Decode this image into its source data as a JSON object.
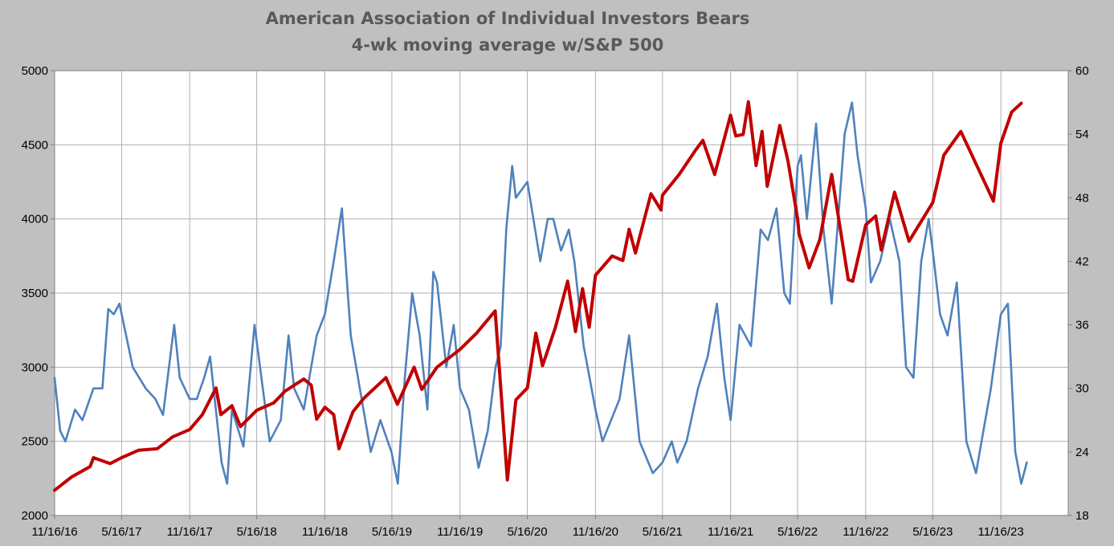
{
  "chart_data": {
    "type": "line",
    "title": "American Association of Individual Investors Bears",
    "subtitle": "4-wk moving average w/S&P 500",
    "xlabel": "",
    "ylabel": "",
    "x_tick_labels": [
      "11/16/16",
      "5/16/17",
      "11/16/17",
      "5/16/18",
      "11/16/18",
      "5/16/19",
      "11/16/19",
      "5/16/20",
      "11/16/20",
      "5/16/21",
      "11/16/21",
      "5/16/22",
      "11/16/22",
      "5/16/23",
      "11/16/23"
    ],
    "x_ticks": [
      "2016-11-16",
      "2017-05-16",
      "2017-11-16",
      "2018-05-16",
      "2018-11-16",
      "2019-05-16",
      "2019-11-16",
      "2020-05-16",
      "2020-11-16",
      "2021-05-16",
      "2021-11-16",
      "2022-05-16",
      "2022-11-16",
      "2023-05-16",
      "2023-11-16"
    ],
    "xlim": [
      "2016-11-16",
      "2024-05-16"
    ],
    "y_left": {
      "range": [
        2000,
        5000
      ],
      "ticks": [
        "2000",
        "2500",
        "3000",
        "3500",
        "4000",
        "4500",
        "5000"
      ]
    },
    "y_right": {
      "range": [
        18,
        60
      ],
      "ticks": [
        "18",
        "24",
        "30",
        "36",
        "42",
        "48",
        "54",
        "60"
      ]
    },
    "grid": true,
    "legend": "none",
    "colors": {
      "background": "#c0c0c0",
      "plot_bg": "#ffffff",
      "grid": "#b0b0b0",
      "sp500": "#c00000",
      "bears": "#4f81bd"
    },
    "series": [
      {
        "axis": "left",
        "color": "#c00000",
        "points": [
          [
            "2016-11-16",
            2170
          ],
          [
            "2017-01-01",
            2260
          ],
          [
            "2017-02-20",
            2330
          ],
          [
            "2017-03-01",
            2390
          ],
          [
            "2017-04-15",
            2350
          ],
          [
            "2017-05-16",
            2390
          ],
          [
            "2017-07-01",
            2440
          ],
          [
            "2017-08-20",
            2450
          ],
          [
            "2017-10-01",
            2530
          ],
          [
            "2017-11-16",
            2580
          ],
          [
            "2017-12-20",
            2680
          ],
          [
            "2018-01-26",
            2860
          ],
          [
            "2018-02-08",
            2680
          ],
          [
            "2018-03-10",
            2740
          ],
          [
            "2018-04-02",
            2600
          ],
          [
            "2018-05-16",
            2710
          ],
          [
            "2018-07-01",
            2760
          ],
          [
            "2018-08-01",
            2840
          ],
          [
            "2018-09-20",
            2920
          ],
          [
            "2018-10-10",
            2880
          ],
          [
            "2018-10-25",
            2650
          ],
          [
            "2018-11-16",
            2730
          ],
          [
            "2018-12-10",
            2680
          ],
          [
            "2018-12-24",
            2450
          ],
          [
            "2019-01-31",
            2700
          ],
          [
            "2019-03-01",
            2790
          ],
          [
            "2019-04-30",
            2930
          ],
          [
            "2019-05-31",
            2750
          ],
          [
            "2019-07-15",
            3000
          ],
          [
            "2019-08-05",
            2850
          ],
          [
            "2019-09-15",
            3000
          ],
          [
            "2019-11-16",
            3120
          ],
          [
            "2019-12-31",
            3230
          ],
          [
            "2020-02-19",
            3380
          ],
          [
            "2020-03-01",
            3000
          ],
          [
            "2020-03-23",
            2240
          ],
          [
            "2020-04-15",
            2780
          ],
          [
            "2020-05-16",
            2860
          ],
          [
            "2020-06-08",
            3230
          ],
          [
            "2020-06-26",
            3010
          ],
          [
            "2020-07-31",
            3270
          ],
          [
            "2020-09-02",
            3580
          ],
          [
            "2020-09-23",
            3240
          ],
          [
            "2020-10-12",
            3530
          ],
          [
            "2020-10-30",
            3270
          ],
          [
            "2020-11-16",
            3620
          ],
          [
            "2020-12-31",
            3750
          ],
          [
            "2021-01-29",
            3720
          ],
          [
            "2021-02-15",
            3930
          ],
          [
            "2021-03-04",
            3770
          ],
          [
            "2021-04-15",
            4170
          ],
          [
            "2021-05-12",
            4060
          ],
          [
            "2021-05-16",
            4160
          ],
          [
            "2021-06-30",
            4300
          ],
          [
            "2021-08-15",
            4470
          ],
          [
            "2021-09-02",
            4530
          ],
          [
            "2021-10-04",
            4300
          ],
          [
            "2021-11-16",
            4700
          ],
          [
            "2021-11-30",
            4560
          ],
          [
            "2021-12-20",
            4570
          ],
          [
            "2022-01-03",
            4790
          ],
          [
            "2022-01-24",
            4360
          ],
          [
            "2022-02-09",
            4590
          ],
          [
            "2022-02-23",
            4220
          ],
          [
            "2022-03-29",
            4630
          ],
          [
            "2022-04-20",
            4390
          ],
          [
            "2022-05-16",
            4000
          ],
          [
            "2022-05-20",
            3900
          ],
          [
            "2022-06-16",
            3670
          ],
          [
            "2022-07-15",
            3860
          ],
          [
            "2022-08-16",
            4300
          ],
          [
            "2022-09-30",
            3590
          ],
          [
            "2022-10-12",
            3580
          ],
          [
            "2022-11-16",
            3960
          ],
          [
            "2022-12-13",
            4020
          ],
          [
            "2022-12-28",
            3790
          ],
          [
            "2023-02-02",
            4180
          ],
          [
            "2023-03-13",
            3850
          ],
          [
            "2023-05-16",
            4110
          ],
          [
            "2023-06-15",
            4430
          ],
          [
            "2023-07-31",
            4590
          ],
          [
            "2023-10-27",
            4120
          ],
          [
            "2023-11-16",
            4510
          ],
          [
            "2023-12-15",
            4720
          ],
          [
            "2024-01-10",
            4780
          ]
        ]
      },
      {
        "axis": "right",
        "color": "#4f81bd",
        "points": [
          [
            "2016-11-16",
            31
          ],
          [
            "2016-12-01",
            26
          ],
          [
            "2016-12-15",
            25
          ],
          [
            "2017-01-10",
            28
          ],
          [
            "2017-01-30",
            27
          ],
          [
            "2017-03-01",
            30
          ],
          [
            "2017-03-25",
            30
          ],
          [
            "2017-04-10",
            37.5
          ],
          [
            "2017-04-25",
            37
          ],
          [
            "2017-05-10",
            38
          ],
          [
            "2017-06-15",
            32
          ],
          [
            "2017-07-20",
            30
          ],
          [
            "2017-08-15",
            29
          ],
          [
            "2017-09-05",
            27.5
          ],
          [
            "2017-10-05",
            36
          ],
          [
            "2017-10-20",
            31
          ],
          [
            "2017-11-16",
            29
          ],
          [
            "2017-12-05",
            29
          ],
          [
            "2017-12-25",
            31
          ],
          [
            "2018-01-10",
            33
          ],
          [
            "2018-02-10",
            23
          ],
          [
            "2018-02-25",
            21
          ],
          [
            "2018-03-10",
            28
          ],
          [
            "2018-04-10",
            24.5
          ],
          [
            "2018-05-10",
            36
          ],
          [
            "2018-05-25",
            32
          ],
          [
            "2018-06-20",
            25
          ],
          [
            "2018-07-20",
            27
          ],
          [
            "2018-08-10",
            35
          ],
          [
            "2018-08-25",
            30
          ],
          [
            "2018-09-20",
            28
          ],
          [
            "2018-10-25",
            35
          ],
          [
            "2018-11-16",
            37
          ],
          [
            "2018-12-10",
            42
          ],
          [
            "2019-01-01",
            47
          ],
          [
            "2019-01-25",
            35
          ],
          [
            "2019-03-20",
            24
          ],
          [
            "2019-04-15",
            27
          ],
          [
            "2019-05-15",
            24
          ],
          [
            "2019-06-01",
            21
          ],
          [
            "2019-06-20",
            31
          ],
          [
            "2019-07-10",
            39
          ],
          [
            "2019-07-30",
            35
          ],
          [
            "2019-08-20",
            28
          ],
          [
            "2019-09-05",
            41
          ],
          [
            "2019-09-15",
            40
          ],
          [
            "2019-10-10",
            32
          ],
          [
            "2019-10-30",
            36
          ],
          [
            "2019-11-16",
            30
          ],
          [
            "2019-12-10",
            28
          ],
          [
            "2020-01-05",
            22.5
          ],
          [
            "2020-01-30",
            26
          ],
          [
            "2020-02-20",
            32
          ],
          [
            "2020-03-05",
            34
          ],
          [
            "2020-03-20",
            45
          ],
          [
            "2020-04-05",
            51
          ],
          [
            "2020-04-15",
            48
          ],
          [
            "2020-05-16",
            49.5
          ],
          [
            "2020-06-20",
            42
          ],
          [
            "2020-07-10",
            46
          ],
          [
            "2020-07-25",
            46
          ],
          [
            "2020-08-15",
            43
          ],
          [
            "2020-09-05",
            45
          ],
          [
            "2020-09-20",
            42
          ],
          [
            "2020-10-15",
            34
          ],
          [
            "2020-11-16",
            28
          ],
          [
            "2020-12-05",
            25
          ],
          [
            "2021-01-20",
            29
          ],
          [
            "2021-02-15",
            35
          ],
          [
            "2021-03-15",
            25
          ],
          [
            "2021-04-20",
            22
          ],
          [
            "2021-05-16",
            23
          ],
          [
            "2021-06-10",
            25
          ],
          [
            "2021-06-25",
            23
          ],
          [
            "2021-07-20",
            25
          ],
          [
            "2021-08-20",
            30
          ],
          [
            "2021-09-15",
            33
          ],
          [
            "2021-10-10",
            38
          ],
          [
            "2021-10-30",
            31
          ],
          [
            "2021-11-16",
            27
          ],
          [
            "2021-12-10",
            36
          ],
          [
            "2022-01-10",
            34
          ],
          [
            "2022-02-05",
            45
          ],
          [
            "2022-02-25",
            44
          ],
          [
            "2022-03-20",
            47
          ],
          [
            "2022-04-10",
            39
          ],
          [
            "2022-04-25",
            38
          ],
          [
            "2022-05-16",
            51
          ],
          [
            "2022-05-25",
            52
          ],
          [
            "2022-06-10",
            46
          ],
          [
            "2022-07-05",
            55
          ],
          [
            "2022-07-25",
            45
          ],
          [
            "2022-08-16",
            38
          ],
          [
            "2022-09-20",
            54
          ],
          [
            "2022-10-10",
            57
          ],
          [
            "2022-10-25",
            52
          ],
          [
            "2022-11-16",
            47
          ],
          [
            "2022-11-30",
            40
          ],
          [
            "2022-12-25",
            42
          ],
          [
            "2023-01-20",
            46
          ],
          [
            "2023-02-15",
            42
          ],
          [
            "2023-03-05",
            32
          ],
          [
            "2023-03-25",
            31
          ],
          [
            "2023-04-15",
            42
          ],
          [
            "2023-05-05",
            46
          ],
          [
            "2023-05-16",
            43
          ],
          [
            "2023-06-05",
            37
          ],
          [
            "2023-06-25",
            35
          ],
          [
            "2023-07-20",
            40
          ],
          [
            "2023-08-15",
            25
          ],
          [
            "2023-09-10",
            22
          ],
          [
            "2023-09-25",
            25
          ],
          [
            "2023-10-20",
            30
          ],
          [
            "2023-11-16",
            37
          ],
          [
            "2023-12-05",
            38
          ],
          [
            "2023-12-25",
            24
          ],
          [
            "2024-01-10",
            21
          ],
          [
            "2024-01-25",
            23
          ]
        ]
      }
    ]
  }
}
